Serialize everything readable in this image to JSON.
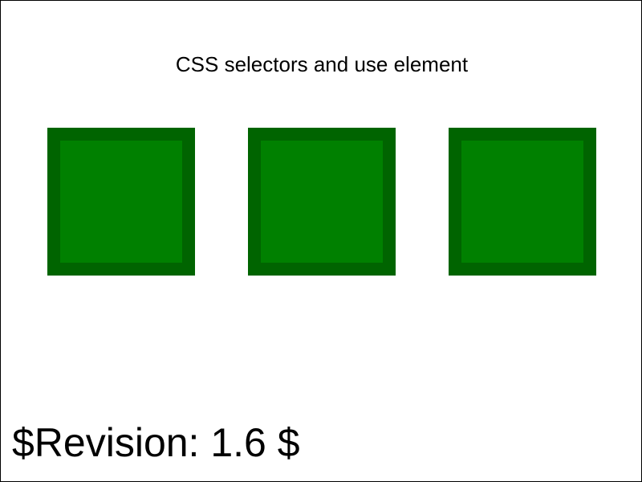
{
  "title": "CSS selectors and use element",
  "revision": "$Revision: 1.6 $",
  "squares": [
    {
      "fill": "#008000",
      "stroke": "#006400"
    },
    {
      "fill": "#008000",
      "stroke": "#006400"
    },
    {
      "fill": "#008000",
      "stroke": "#006400"
    }
  ]
}
